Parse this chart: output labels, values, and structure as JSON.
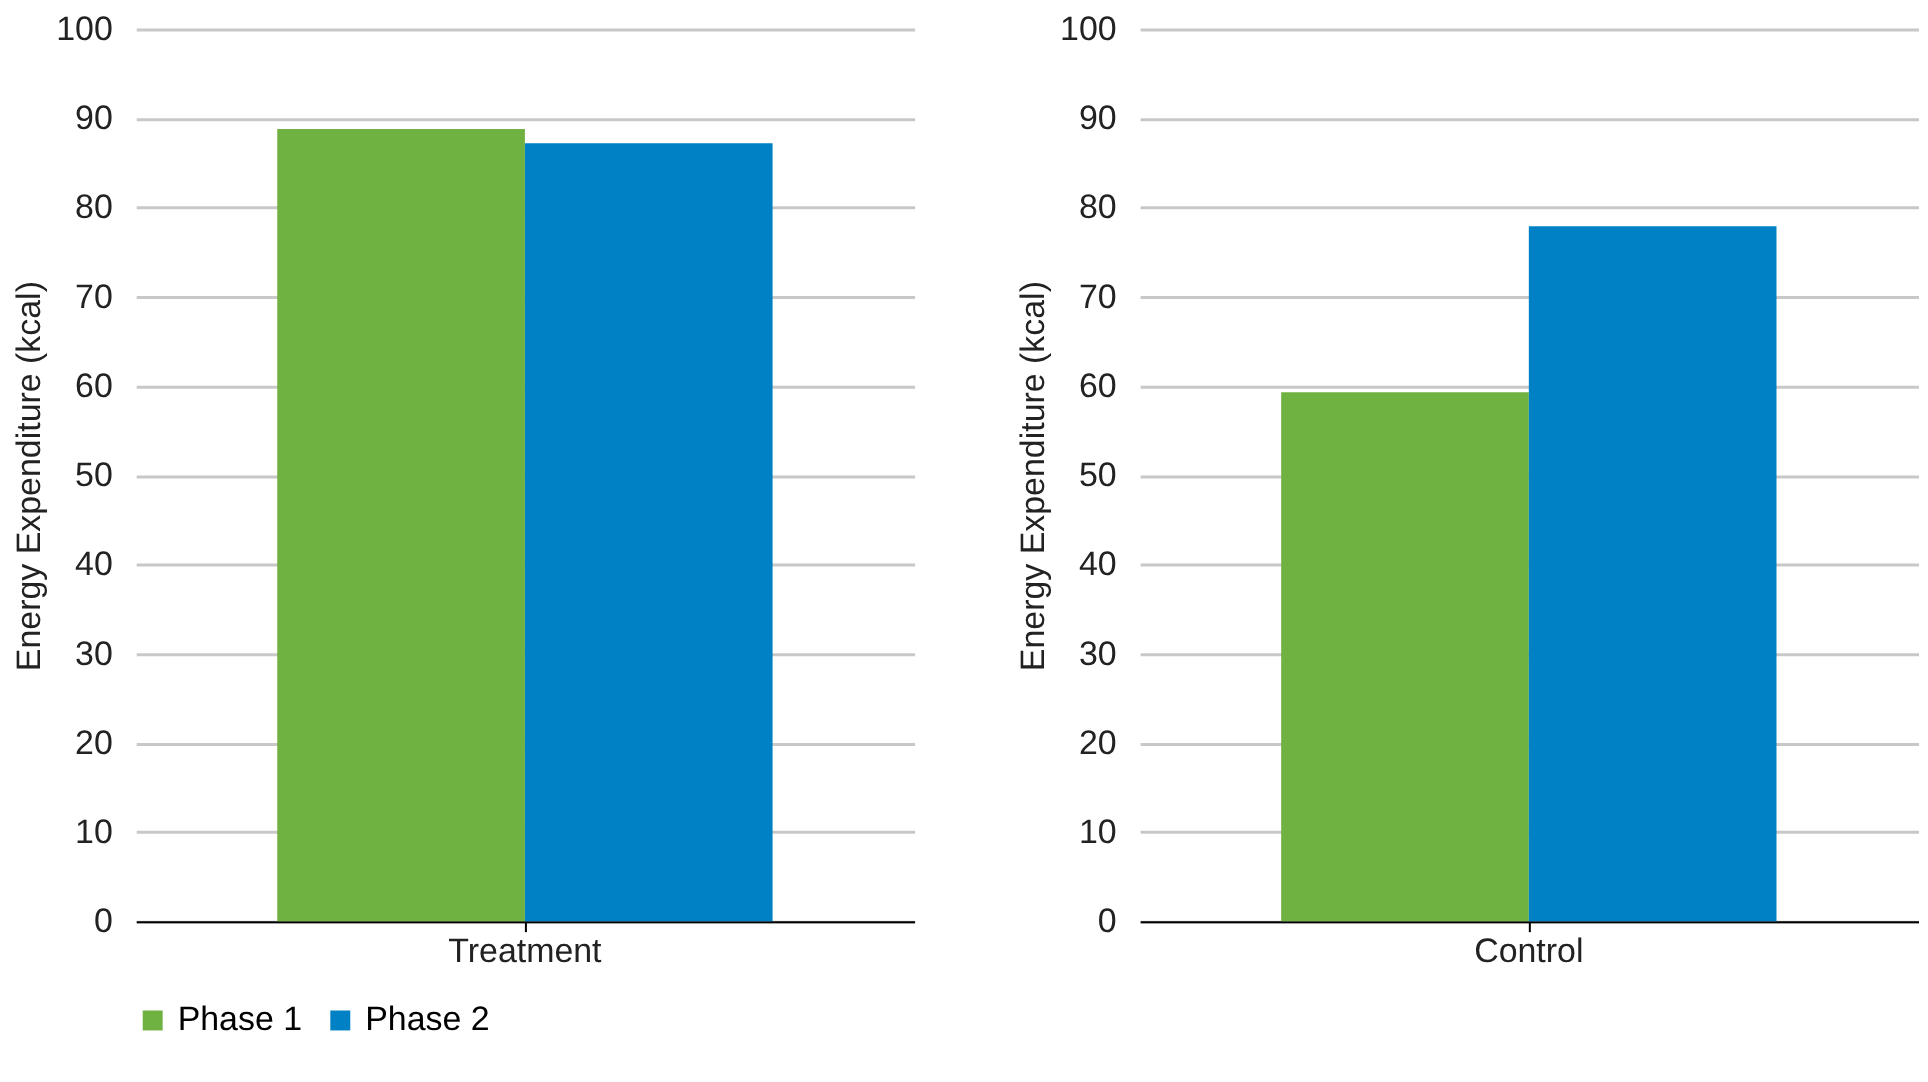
{
  "chart_data": [
    {
      "type": "bar",
      "categories": [
        "Treatment"
      ],
      "ylabel": "Energy Expenditure (kcal)",
      "ylim": [
        0,
        100
      ],
      "yticks": [
        0,
        10,
        20,
        30,
        40,
        50,
        60,
        70,
        80,
        90,
        100
      ],
      "grid": "y",
      "legend": "bottom",
      "series": [
        {
          "name": "Phase 1",
          "color": "#70b242",
          "values": [
            88.8
          ]
        },
        {
          "name": "Phase 2",
          "color": "#0081c6",
          "values": [
            87.2
          ]
        }
      ]
    },
    {
      "type": "bar",
      "categories": [
        "Control"
      ],
      "ylabel": "Energy Expenditure (kcal)",
      "ylim": [
        0,
        100
      ],
      "yticks": [
        0,
        10,
        20,
        30,
        40,
        50,
        60,
        70,
        80,
        90,
        100
      ],
      "grid": "y",
      "legend": "bottom",
      "series": [
        {
          "name": "Phase 1",
          "color": "#70b242",
          "values": [
            59.3
          ]
        },
        {
          "name": "Phase 2",
          "color": "#0081c6",
          "values": [
            77.9
          ]
        }
      ]
    }
  ]
}
